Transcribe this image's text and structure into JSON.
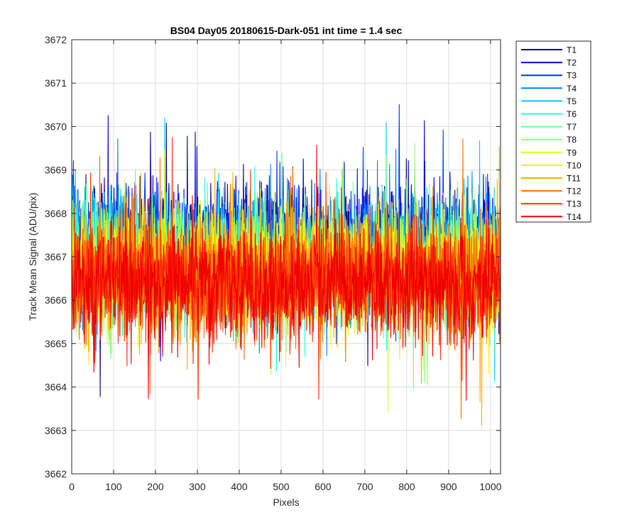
{
  "chart_data": {
    "type": "line",
    "title": "BS04 Day05 20180615-Dark-051 int time = 1.4 sec",
    "xlabel": "Pixels",
    "ylabel": "Track Mean Signal (ADU/pix)",
    "xlim": [
      0,
      1024
    ],
    "ylim": [
      3662,
      3672
    ],
    "xticks": [
      0,
      100,
      200,
      300,
      400,
      500,
      600,
      700,
      800,
      900,
      1000
    ],
    "yticks": [
      3662,
      3663,
      3664,
      3665,
      3666,
      3667,
      3668,
      3669,
      3670,
      3671,
      3672
    ],
    "grid": true,
    "legend_position": "outside-right",
    "n_points": 1024,
    "series": [
      {
        "name": "T1",
        "color": "#00008f",
        "mean": 3667.3,
        "noise": 0.65
      },
      {
        "name": "T2",
        "color": "#0000df",
        "mean": 3667.25,
        "noise": 0.65
      },
      {
        "name": "T3",
        "color": "#0030ff",
        "mean": 3667.2,
        "noise": 0.65
      },
      {
        "name": "T4",
        "color": "#0080ff",
        "mean": 3667.1,
        "noise": 0.7
      },
      {
        "name": "T5",
        "color": "#00cfff",
        "mean": 3667.0,
        "noise": 0.65
      },
      {
        "name": "T6",
        "color": "#20ffdf",
        "mean": 3666.95,
        "noise": 0.65
      },
      {
        "name": "T7",
        "color": "#70ff8f",
        "mean": 3666.85,
        "noise": 0.65
      },
      {
        "name": "T8",
        "color": "#8fff70",
        "mean": 3666.8,
        "noise": 0.65
      },
      {
        "name": "T9",
        "color": "#dfff20",
        "mean": 3666.75,
        "noise": 0.65
      },
      {
        "name": "T10",
        "color": "#ffef00",
        "mean": 3666.65,
        "noise": 0.65
      },
      {
        "name": "T11",
        "color": "#ffb000",
        "mean": 3666.6,
        "noise": 0.65
      },
      {
        "name": "T12",
        "color": "#ff7000",
        "mean": 3666.5,
        "noise": 0.65
      },
      {
        "name": "T13",
        "color": "#ff3000",
        "mean": 3666.4,
        "noise": 0.65
      },
      {
        "name": "T14",
        "color": "#ef0000",
        "mean": 3666.35,
        "noise": 0.65
      }
    ]
  }
}
